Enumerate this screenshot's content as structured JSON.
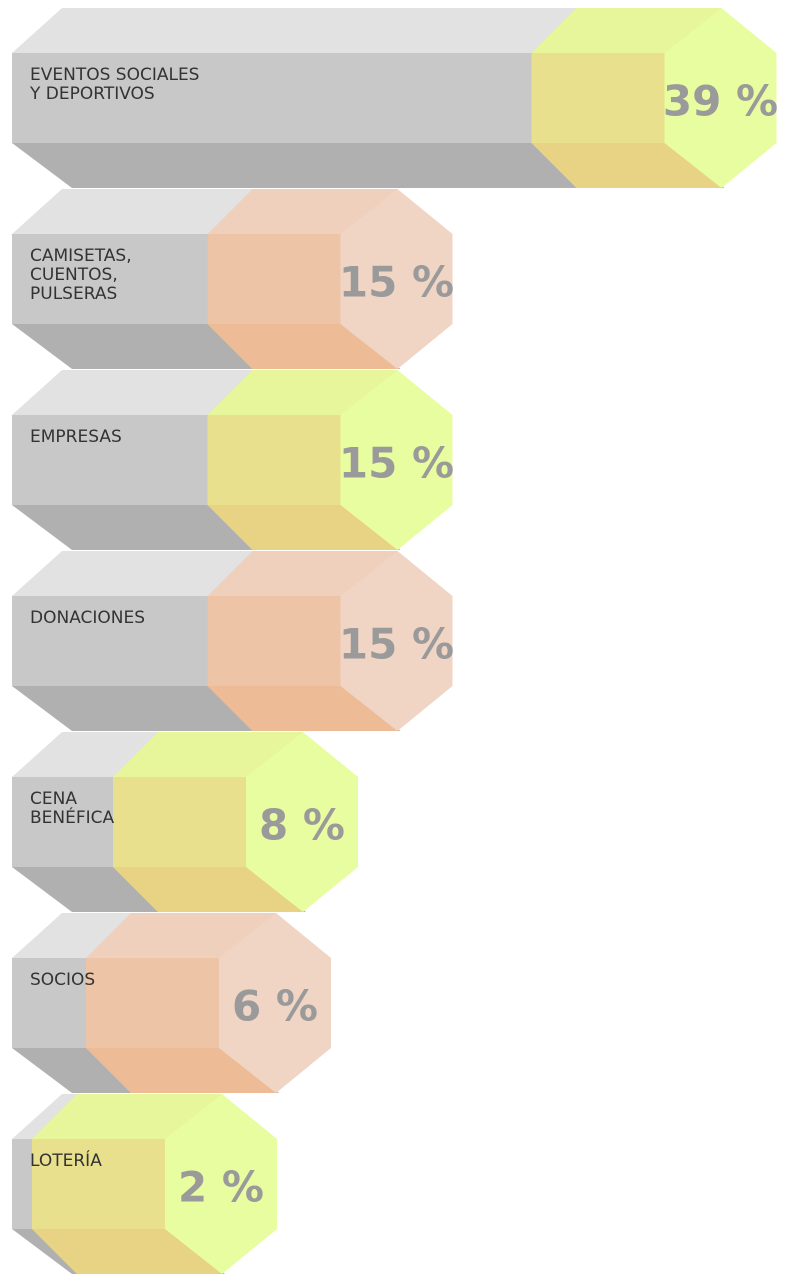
{
  "chart_data": {
    "type": "bar",
    "categories": [
      "EVENTOS SOCIALES\nY DEPORTIVOS",
      "CAMISETAS,\nCUENTOS,\nPULSERAS",
      "EMPRESAS",
      "DONACIONES",
      "CENA\nBENÉFICA",
      "SOCIOS",
      "LOTERÍA"
    ],
    "values": [
      39,
      15,
      15,
      15,
      8,
      6,
      2
    ],
    "value_labels": [
      "39 %",
      "15 %",
      "15 %",
      "15 %",
      "8 %",
      "6 %",
      "2 %"
    ],
    "colors": [
      "#e8fca0",
      "#f0d4c4",
      "#e8fca0",
      "#f0d4c4",
      "#e8fca0",
      "#f0d4c4",
      "#e8fca0"
    ]
  }
}
